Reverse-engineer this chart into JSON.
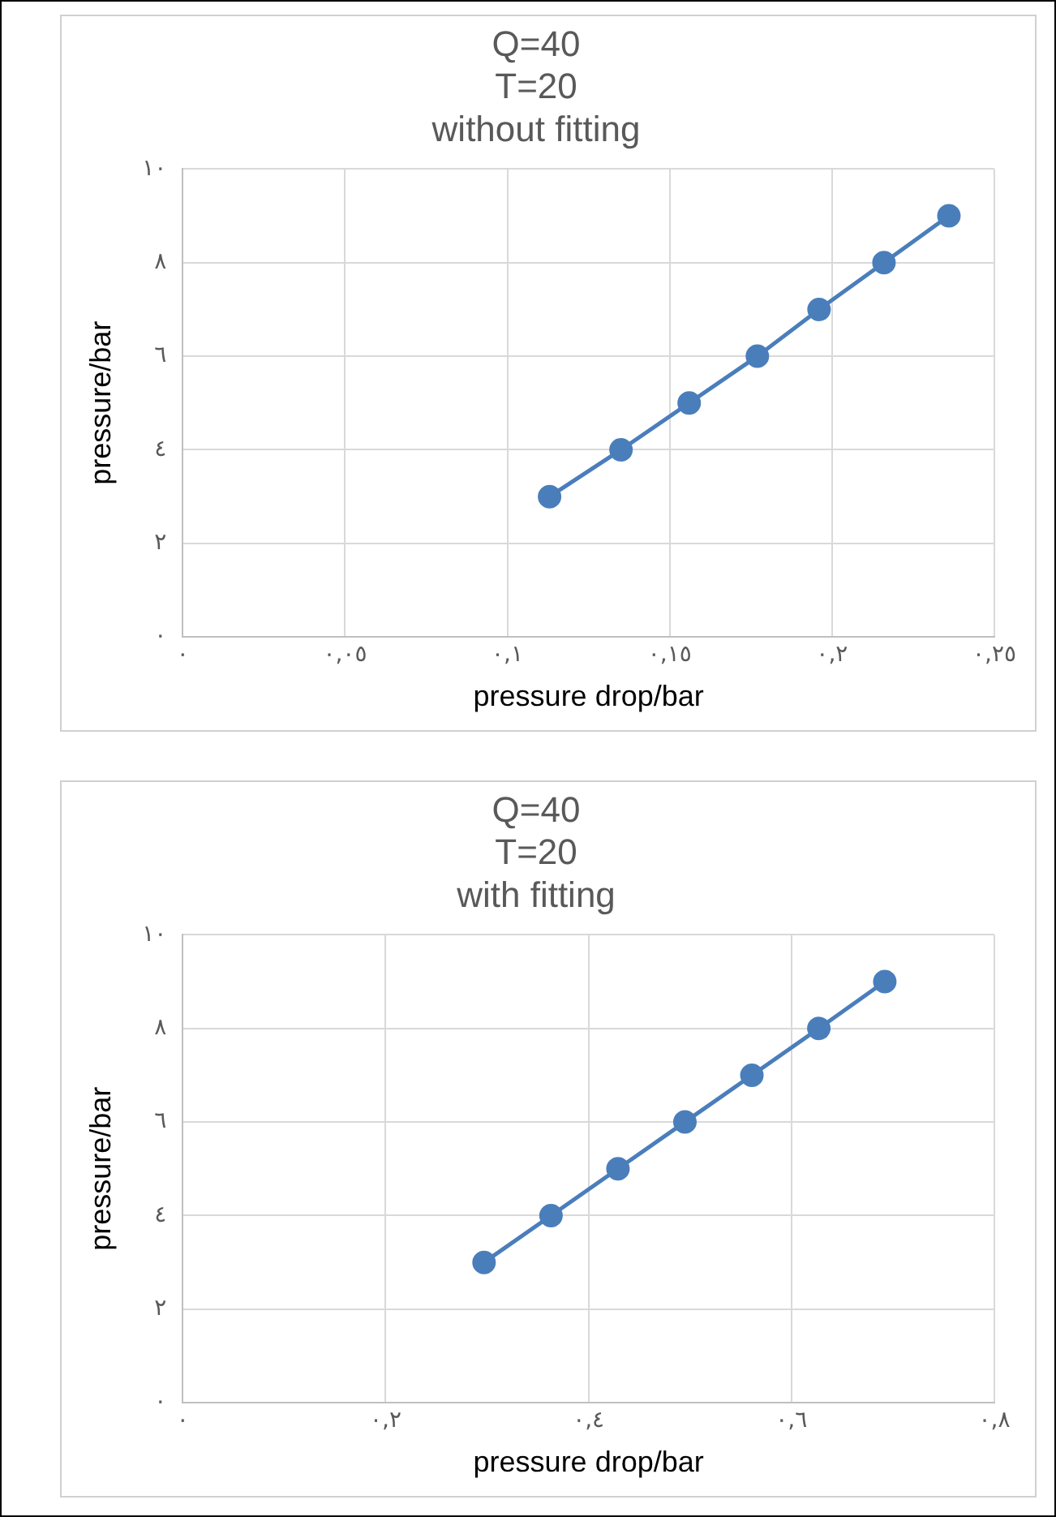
{
  "chart_data": [
    {
      "type": "line",
      "title": "Q=40\nT=20\nwithout fitting",
      "xlabel": "pressure drop/bar",
      "ylabel": "pressure/bar",
      "x": [
        0.113,
        0.135,
        0.156,
        0.177,
        0.196,
        0.216,
        0.236
      ],
      "series": [
        {
          "color": "#4a7ebb",
          "values": [
            3,
            4,
            5,
            6,
            7,
            8,
            9
          ]
        }
      ],
      "xlim": [
        0,
        0.25
      ],
      "xticks": [
        {
          "value": 0,
          "label": "٠"
        },
        {
          "value": 0.05,
          "label": "٠,٠٥"
        },
        {
          "value": 0.1,
          "label": "٠,١"
        },
        {
          "value": 0.15,
          "label": "٠,١٥"
        },
        {
          "value": 0.2,
          "label": "٠,٢"
        },
        {
          "value": 0.25,
          "label": "٠,٢٥"
        }
      ],
      "ylim": [
        0,
        10
      ],
      "yticks": [
        {
          "value": 0,
          "label": "٠"
        },
        {
          "value": 2,
          "label": "٢"
        },
        {
          "value": 4,
          "label": "٤"
        },
        {
          "value": 6,
          "label": "٦"
        },
        {
          "value": 8,
          "label": "٨"
        },
        {
          "value": 10,
          "label": "١٠"
        }
      ],
      "grid": true,
      "legend": false,
      "marker": "circle",
      "line_style": "solid"
    },
    {
      "type": "line",
      "title": "Q=40\nT=20\nwith fitting",
      "xlabel": "pressure drop/bar",
      "ylabel": "pressure/bar",
      "x": [
        0.297,
        0.363,
        0.429,
        0.495,
        0.561,
        0.627,
        0.692
      ],
      "series": [
        {
          "color": "#4a7ebb",
          "values": [
            3,
            4,
            5,
            6,
            7,
            8,
            9
          ]
        }
      ],
      "xlim": [
        0,
        0.8
      ],
      "xticks": [
        {
          "value": 0,
          "label": "٠"
        },
        {
          "value": 0.2,
          "label": "٠,٢"
        },
        {
          "value": 0.4,
          "label": "٠,٤"
        },
        {
          "value": 0.6,
          "label": "٠,٦"
        },
        {
          "value": 0.8,
          "label": "٠,٨"
        }
      ],
      "ylim": [
        0,
        10
      ],
      "yticks": [
        {
          "value": 0,
          "label": "٠"
        },
        {
          "value": 2,
          "label": "٢"
        },
        {
          "value": 4,
          "label": "٤"
        },
        {
          "value": 6,
          "label": "٦"
        },
        {
          "value": 8,
          "label": "٨"
        },
        {
          "value": 10,
          "label": "١٠"
        }
      ],
      "grid": true,
      "legend": false,
      "marker": "circle",
      "line_style": "solid"
    }
  ]
}
